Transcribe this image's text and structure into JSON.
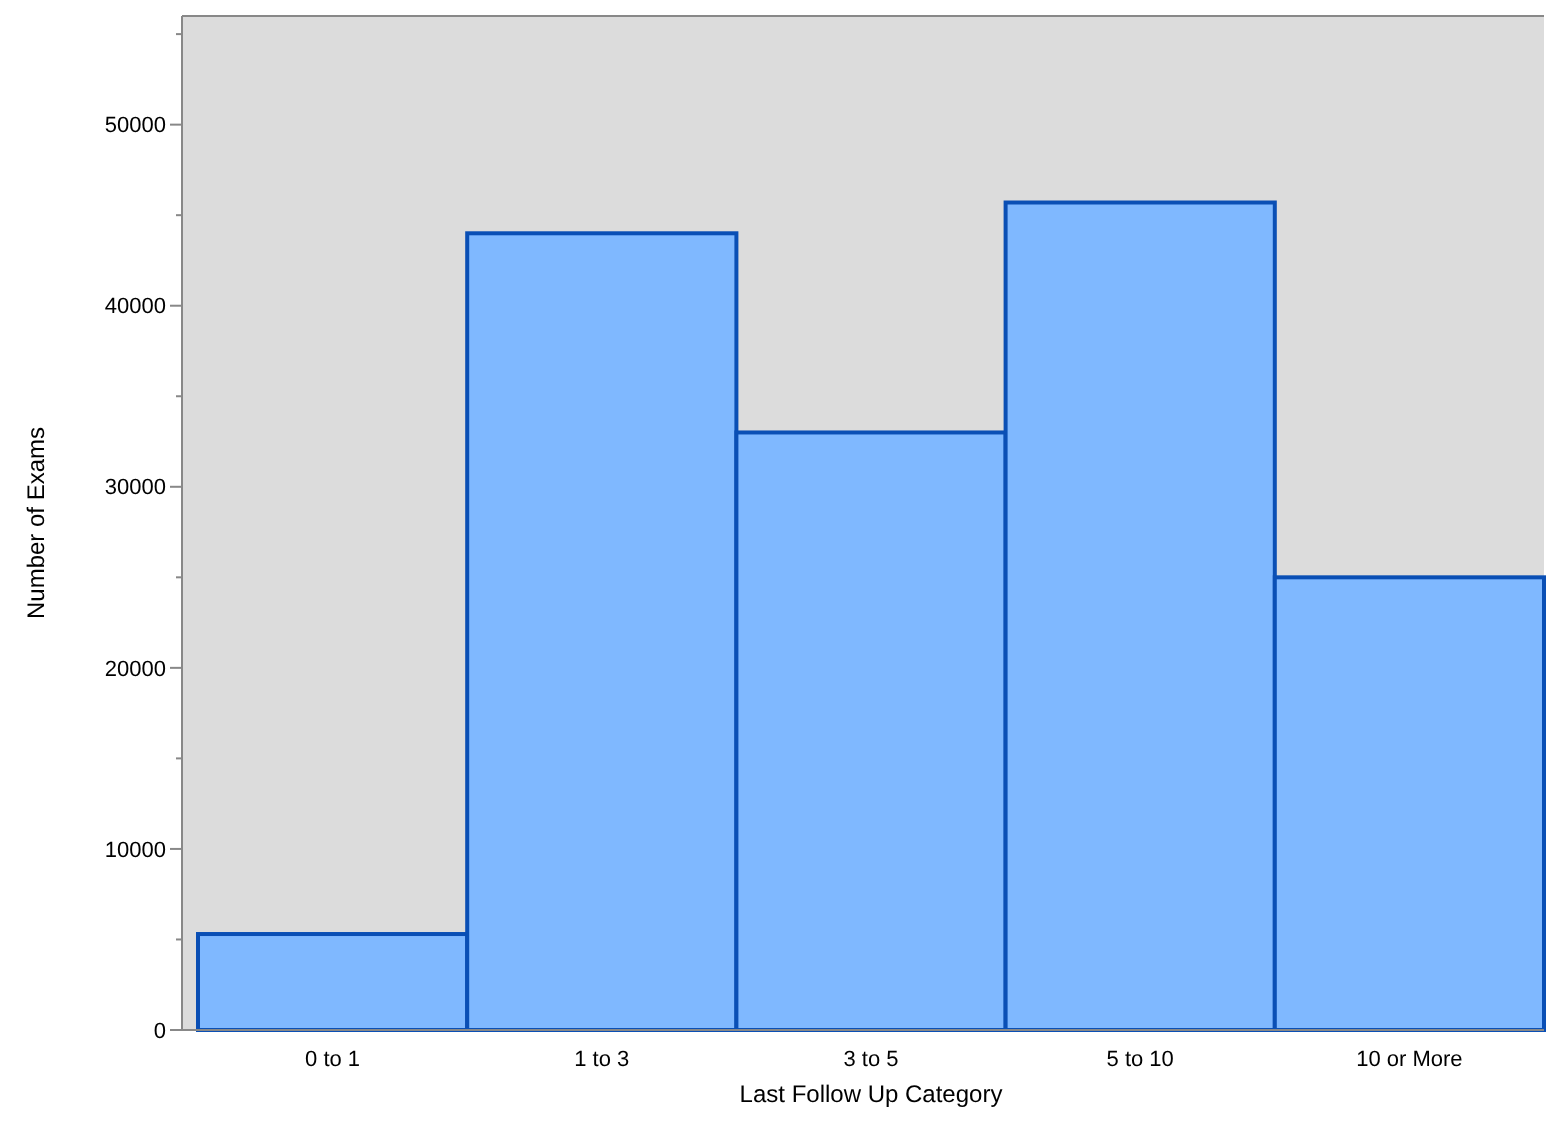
{
  "chart_data": {
    "type": "bar",
    "xlabel": "Last Follow Up Category",
    "ylabel": "Number of Exams",
    "categories": [
      "0 to 1",
      "1 to 3",
      "3 to 5",
      "5 to 10",
      "10 or More"
    ],
    "values": [
      5300,
      44000,
      33000,
      45700,
      25000
    ],
    "color": "#7fb8ff",
    "ylim": [
      0,
      56000
    ],
    "yticks": [
      0,
      {
        "value": 5000,
        "label": null
      },
      10000,
      {
        "value": 15000,
        "label": null
      },
      20000,
      {
        "value": 25000,
        "label": null
      },
      30000,
      {
        "value": 35000,
        "label": null
      },
      40000,
      {
        "value": 45000,
        "label": null
      },
      50000,
      {
        "value": 55000,
        "label": null
      }
    ],
    "grid": false
  }
}
